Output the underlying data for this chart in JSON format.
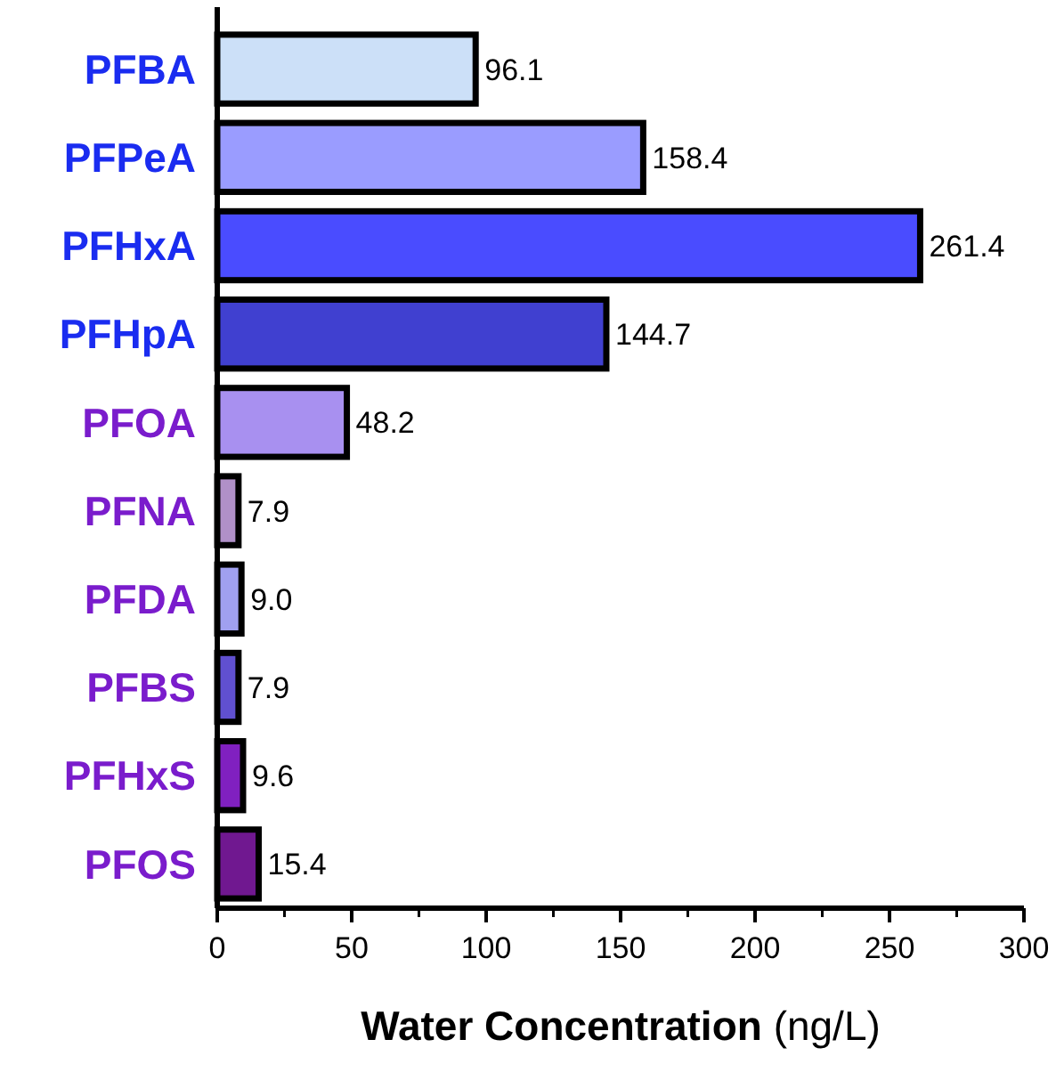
{
  "chart_data": {
    "type": "bar",
    "orientation": "horizontal",
    "xlabel": "Water Concentration (ng/L)",
    "categories": [
      "PFBA",
      "PFPeA",
      "PFHxA",
      "PFHpA",
      "PFOA",
      "PFNA",
      "PFDA",
      "PFBS",
      "PFHxS",
      "PFOS"
    ],
    "values": [
      96.1,
      158.4,
      261.4,
      144.7,
      48.2,
      7.9,
      9.0,
      7.9,
      9.6,
      15.4
    ],
    "value_labels": [
      "96.1",
      "158.4",
      "261.4",
      "144.7",
      "48.2",
      "7.9",
      "9.0",
      "7.9",
      "9.6",
      "15.4"
    ],
    "colors": [
      "#cce0f8",
      "#9a9cff",
      "#4a4cff",
      "#4040d0",
      "#a890f0",
      "#b090c8",
      "#a0a0f0",
      "#6050d0",
      "#8020c0",
      "#701890"
    ],
    "xlim": [
      0,
      300
    ],
    "xticks": [
      0,
      50,
      100,
      150,
      200,
      250,
      300
    ]
  }
}
